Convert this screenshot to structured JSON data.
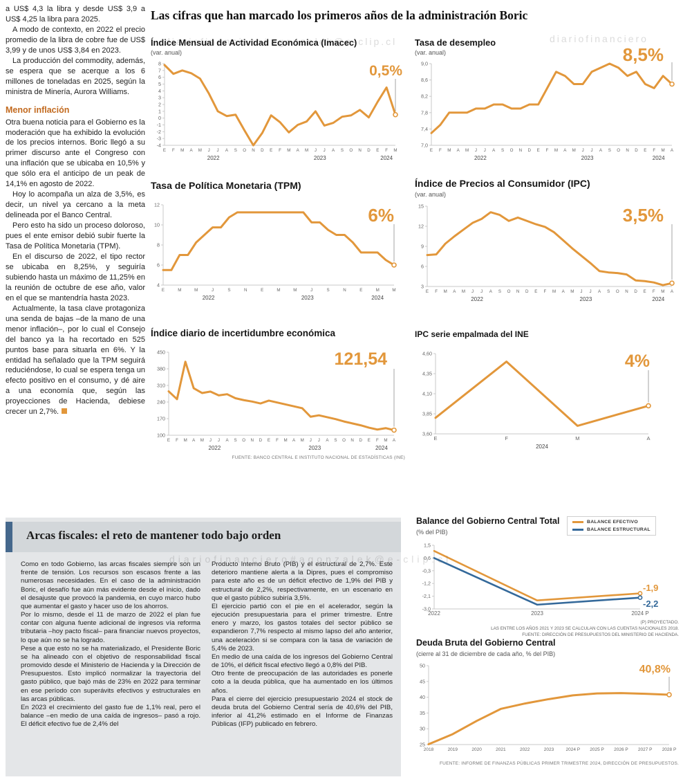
{
  "watermarks": [
    "diariofinanciero#agonzalek@e-clip.cl",
    "diariofinanciero",
    "diariofinanciero#agonzalek@e-clip.cl"
  ],
  "main_title": "Las cifras que han marcado los primeros años de la administración Boric",
  "left_article": {
    "paragraphs_top": [
      "a US$ 4,3 la libra y desde US$ 3,9 a US$ 4,25 la libra para 2025.",
      "A modo de contexto, en 2022 el precio promedio de la libra de cobre fue de US$ 3,99 y de unos US$ 3,84 en 2023.",
      "La producción del commodity, además, se espera que se acerque a los 6 millones de toneladas en 2025, según la ministra de Minería, Aurora Williams."
    ],
    "subheading": "Menor inflación",
    "paragraphs_bottom": [
      "Otra buena noticia para el Gobierno es la moderación que ha exhibido la evolución de los precios internos. Boric llegó a su primer discurso ante el Congreso con una inflación que se ubicaba en 10,5% y que sólo era el anticipo de un peak de 14,1% en agosto de 2022.",
      "Hoy lo acompaña un alza de 3,5%, es decir, un nivel ya cercano a la meta delineada por el Banco Central.",
      "Pero esto ha sido un proceso doloroso, pues el ente emisor debió subir fuerte la Tasa de Política Monetaria (TPM).",
      "En el discurso de 2022, el tipo rector se ubicaba en 8,25%, y seguiría subiendo hasta un máximo de 11,25% en la reunión de octubre de ese año, valor en el que se mantendría hasta 2023.",
      "Actualmente, la tasa clave protagoniza una senda de bajas –de la mano de una menor inflación–, por lo cual el Consejo del banco ya la ha recortado en 525 puntos base para situarla en 6%. Y la entidad ha señalado que la TPM seguirá reduciéndose, lo cual se espera tenga un efecto positivo en el consumo, y dé aire a una economía que, según las proyecciones de Hacienda, debiese crecer un 2,7%."
    ]
  },
  "sources": {
    "top_charts": "FUENTE: BANCO CENTRAL E INSTITUTO NACIONAL DE ESTADÍSTICAS (INE)",
    "debt": "FUENTE: INFORME DE FINANZAS PÚBLICAS PRIMER TRIMESTRE 2024, DIRECCIÓN DE PRESUPUESTOS."
  },
  "balance_notes": [
    "(P) PROYECTADO.",
    "LAS ENTRE LOS AÑOS 2021 Y 2023 SE CALCULAN  CON LAS CUENTAS NACIONALES 2018.",
    "FUENTE: DIRECCIÓN DE PRESUPUESTOS DEL MINISTERIO DE HACIENDA."
  ],
  "fiscal_panel": {
    "title": "Arcas fiscales: el reto de mantener todo bajo orden",
    "col1": [
      "Como en todo Gobierno, las arcas fiscales siempre son un frente de tensión. Los recursos son escasos frente a las numerosas necesidades. En el caso de la administración Boric, el desafío fue aún más evidente desde el inicio, dado el desajuste que provocó la pandemia, en cuyo marco hubo que aumentar el gasto y hacer uso de los ahorros.",
      "Por lo mismo, desde el 11 de marzo de 2022 el plan fue contar con alguna fuente adicional de ingresos vía reforma tributaria –hoy pacto fiscal– para financiar nuevos proyectos, lo que aún no se ha logrado.",
      "Pese a que esto no se ha materializado, el Presidente Boric se ha alineado con el objetivo de responsabilidad fiscal promovido desde el Ministerio de Hacienda y la Dirección de Presupuestos. Esto implicó normalizar la trayectoria del gasto público, que bajó más de 23% en 2022 para terminar en ese período con superávits efectivos y estructurales en las arcas públicas.",
      "En 2023 el crecimiento del gasto fue de 1,1% real, pero el balance –en medio de una caída de ingresos–  pasó a rojo. El déficit efectivo fue de 2,4% del"
    ],
    "col2": [
      "Producto Interno Bruto (PIB) y el estructural de 2,7%. Este deterioro mantiene alerta a la Dipres, pues el compromiso para este año es de un déficit efectivo de 1,9% del PIB y estructural de 2,2%, respectivamente, en un escenario en que el gasto público subiría 3,5%.",
      "El ejercicio partió con el pie en el acelerador, según la ejecución presupuestaria para el primer trimestre. Entre enero y marzo, los gastos totales del sector público se expandieron 7,7% respecto al mismo lapso del año anterior, una aceleración si se compara con la tasa de variación de 5,4% de 2023.",
      "En medio de una caída de los ingresos del Gobierno Central de 10%, el déficit fiscal efectivo llegó a 0,8% del PIB.",
      "Otro frente de preocupación de las autoridades es ponerle coto a la deuda pública, que ha aumentado en los últimos años.",
      "Para el cierre del ejercicio presupuestario 2024 el stock de deuda bruta del Gobierno Central sería de 40,6% del PIB, inferior al 41,2% estimado en el Informe de Finanzas Públicas (IFP) publicado en febrero."
    ]
  },
  "colors": {
    "orange": "#E2973B",
    "blue": "#34699A"
  },
  "chart_data": [
    {
      "type": "line",
      "title": "Índice Mensual de Actividad Económica (Imacec)",
      "subtitle": "(var. anual)",
      "big_label": "0,5%",
      "ymin": -4,
      "ymax": 8,
      "yticks": [
        {
          "v": 8,
          "label": "8"
        },
        {
          "v": 7,
          "label": "7"
        },
        {
          "v": 6,
          "label": "6"
        },
        {
          "v": 5,
          "label": "5"
        },
        {
          "v": 4,
          "label": "4"
        },
        {
          "v": 3,
          "label": "3"
        },
        {
          "v": 2,
          "label": "2"
        },
        {
          "v": 1,
          "label": "1"
        },
        {
          "v": 0,
          "label": "0"
        },
        {
          "v": -1,
          "label": "-1"
        },
        {
          "v": -2,
          "label": "-2"
        },
        {
          "v": -3,
          "label": "-3"
        },
        {
          "v": -4,
          "label": "-4"
        }
      ],
      "xlabels": [
        "E",
        "F",
        "M",
        "A",
        "M",
        "J",
        "J",
        "A",
        "S",
        "O",
        "N",
        "D",
        "E",
        "F",
        "M",
        "A",
        "M",
        "J",
        "J",
        "A",
        "S",
        "O",
        "N",
        "D",
        "E",
        "F",
        "M"
      ],
      "years": [
        {
          "label": "2022",
          "start": 0,
          "end": 11
        },
        {
          "label": "2023",
          "start": 12,
          "end": 23
        },
        {
          "label": "2024",
          "start": 24,
          "end": 26
        }
      ],
      "series": [
        {
          "name": "Imacec",
          "color": "#E2973B",
          "values": [
            7.8,
            6.5,
            7.0,
            6.6,
            5.8,
            3.6,
            1.0,
            0.3,
            0.5,
            -1.8,
            -4.0,
            -2.2,
            0.4,
            -0.6,
            -2.1,
            -1.0,
            -0.5,
            1.0,
            -1.1,
            -0.7,
            0.2,
            0.4,
            1.2,
            0.1,
            2.4,
            4.5,
            0.5
          ]
        }
      ],
      "pointer": true,
      "pointer_top": 28,
      "pad_left": 20,
      "pad_right": 14
    },
    {
      "type": "line",
      "title": "Tasa de desempleo",
      "subtitle": "(var. anual)",
      "big_label": "8,5%",
      "ymin": 7.0,
      "ymax": 9.0,
      "yticks": [
        {
          "v": 9.0,
          "label": "9,0"
        },
        {
          "v": 8.6,
          "label": "8,6"
        },
        {
          "v": 8.2,
          "label": "8,2"
        },
        {
          "v": 7.8,
          "label": "7,8"
        },
        {
          "v": 7.4,
          "label": "7,4"
        },
        {
          "v": 7.0,
          "label": "7,0"
        }
      ],
      "xlabels": [
        "E",
        "F",
        "M",
        "A",
        "M",
        "J",
        "J",
        "A",
        "S",
        "O",
        "N",
        "D",
        "E",
        "F",
        "M",
        "A",
        "M",
        "J",
        "J",
        "A",
        "S",
        "O",
        "N",
        "D",
        "E",
        "F",
        "M",
        "A"
      ],
      "years": [
        {
          "label": "2022",
          "start": 0,
          "end": 11
        },
        {
          "label": "2023",
          "start": 12,
          "end": 23
        },
        {
          "label": "2024",
          "start": 24,
          "end": 27
        }
      ],
      "series": [
        {
          "name": "Tasa de desempleo",
          "color": "#E2973B",
          "values": [
            7.3,
            7.5,
            7.8,
            7.8,
            7.8,
            7.9,
            7.9,
            8.0,
            8.0,
            7.9,
            7.9,
            8.0,
            8.0,
            8.4,
            8.8,
            8.7,
            8.5,
            8.5,
            8.8,
            8.9,
            9.0,
            8.9,
            8.7,
            8.8,
            8.5,
            8.4,
            8.7,
            8.5
          ]
        }
      ],
      "pointer": true,
      "pointer_top": 4,
      "pad_left": 24,
      "pad_right": 12
    },
    {
      "type": "line",
      "title": "Tasa de Política Monetaria (TPM)",
      "big_label": "6%",
      "ymin": 4,
      "ymax": 12,
      "yticks": [
        {
          "v": 12,
          "label": "12"
        },
        {
          "v": 10,
          "label": "10"
        },
        {
          "v": 8,
          "label": "8"
        },
        {
          "v": 6,
          "label": "6"
        },
        {
          "v": 4,
          "label": "4"
        }
      ],
      "xlabels": [
        "E",
        "",
        "M",
        "",
        "M",
        "",
        "J",
        "",
        "S",
        "",
        "N",
        "",
        "E",
        "",
        "M",
        "",
        "M",
        "",
        "J",
        "",
        "S",
        "",
        "N",
        "",
        "E",
        "",
        "M",
        "",
        "M"
      ],
      "years": [
        {
          "label": "2022",
          "start": 0,
          "end": 11
        },
        {
          "label": "2023",
          "start": 12,
          "end": 23
        },
        {
          "label": "2024",
          "start": 24,
          "end": 28
        }
      ],
      "series": [
        {
          "name": "TPM",
          "color": "#E2973B",
          "values": [
            5.5,
            5.5,
            7.0,
            7.0,
            8.25,
            9.0,
            9.75,
            9.75,
            10.75,
            11.25,
            11.25,
            11.25,
            11.25,
            11.25,
            11.25,
            11.25,
            11.25,
            11.25,
            10.25,
            10.25,
            9.5,
            9.0,
            9.0,
            8.25,
            7.25,
            7.25,
            7.25,
            6.5,
            6.0
          ]
        }
      ],
      "pointer": true,
      "pointer_top": 34,
      "pad_left": 18,
      "pad_right": 16
    },
    {
      "type": "line",
      "title": "Índice de Precios al Consumidor (IPC)",
      "subtitle": "(var. anual)",
      "big_label": "3,5%",
      "ymin": 3,
      "ymax": 15,
      "yticks": [
        {
          "v": 15,
          "label": "15"
        },
        {
          "v": 12,
          "label": "12"
        },
        {
          "v": 9,
          "label": "9"
        },
        {
          "v": 6,
          "label": "6"
        },
        {
          "v": 3,
          "label": "3"
        }
      ],
      "xlabels": [
        "E",
        "F",
        "M",
        "A",
        "M",
        "J",
        "J",
        "A",
        "S",
        "O",
        "N",
        "D",
        "E",
        "F",
        "M",
        "A",
        "M",
        "J",
        "J",
        "A",
        "S",
        "O",
        "N",
        "D",
        "E",
        "F",
        "M",
        "A"
      ],
      "years": [
        {
          "label": "2022",
          "start": 0,
          "end": 11
        },
        {
          "label": "2023",
          "start": 12,
          "end": 23
        },
        {
          "label": "2024",
          "start": 24,
          "end": 27
        }
      ],
      "series": [
        {
          "name": "IPC",
          "color": "#E2973B",
          "values": [
            7.7,
            7.8,
            9.4,
            10.5,
            11.5,
            12.5,
            13.1,
            14.1,
            13.7,
            12.8,
            13.3,
            12.8,
            12.3,
            11.9,
            11.1,
            9.9,
            8.7,
            7.6,
            6.5,
            5.3,
            5.1,
            5.0,
            4.8,
            3.9,
            3.8,
            3.6,
            3.2,
            3.5
          ]
        }
      ],
      "pointer": true,
      "pointer_top": 32,
      "pad_left": 18,
      "pad_right": 12
    },
    {
      "type": "line",
      "title": "Índice diario de incertidumbre económica",
      "big_label": "121,54",
      "ymin": 100,
      "ymax": 450,
      "yticks": [
        {
          "v": 450,
          "label": "450"
        },
        {
          "v": 380,
          "label": "380"
        },
        {
          "v": 310,
          "label": "310"
        },
        {
          "v": 240,
          "label": "240"
        },
        {
          "v": 170,
          "label": "170"
        },
        {
          "v": 100,
          "label": "100"
        }
      ],
      "xlabels": [
        "E",
        "F",
        "M",
        "A",
        "M",
        "J",
        "J",
        "A",
        "S",
        "O",
        "N",
        "D",
        "E",
        "F",
        "M",
        "A",
        "M",
        "J",
        "J",
        "A",
        "S",
        "O",
        "N",
        "D",
        "E",
        "F",
        "M",
        "A"
      ],
      "years": [
        {
          "label": "2022",
          "start": 0,
          "end": 11
        },
        {
          "label": "2023",
          "start": 12,
          "end": 23
        },
        {
          "label": "2024",
          "start": 24,
          "end": 27
        }
      ],
      "series": [
        {
          "name": "Incertidumbre económica",
          "color": "#E2973B",
          "values": [
            285,
            252,
            410,
            298,
            278,
            284,
            268,
            273,
            256,
            248,
            242,
            234,
            246,
            238,
            230,
            222,
            214,
            178,
            184,
            176,
            168,
            158,
            150,
            142,
            132,
            124,
            130,
            121.54
          ]
        }
      ],
      "pointer": true,
      "pointer_top": 30,
      "pad_left": 26,
      "pad_right": 16
    },
    {
      "type": "line",
      "title": "IPC serie empalmada del INE",
      "big_label": "4%",
      "ymin": 3.6,
      "ymax": 4.6,
      "yticks": [
        {
          "v": 4.6,
          "label": "4,60"
        },
        {
          "v": 4.35,
          "label": "4,35"
        },
        {
          "v": 4.1,
          "label": "4,10"
        },
        {
          "v": 3.85,
          "label": "3,85"
        },
        {
          "v": 3.6,
          "label": "3,60"
        }
      ],
      "xlabels": [
        "E",
        "F",
        "M",
        "A"
      ],
      "years": [
        {
          "label": "2024",
          "start": 0,
          "end": 3
        }
      ],
      "series": [
        {
          "name": "IPC serie empalmada",
          "color": "#E2973B",
          "values": [
            3.8,
            4.5,
            3.7,
            3.95
          ]
        }
      ],
      "pointer": true,
      "pointer_top": 30,
      "pad_left": 30,
      "pad_right": 46,
      "xlabel_size": 7.5
    },
    {
      "type": "line",
      "title": "Balance del Gobierno Central Total",
      "subtitle": "(% del PIB)",
      "ymin": -3.0,
      "ymax": 1.5,
      "yticks": [
        {
          "v": 1.5,
          "label": "1,5"
        },
        {
          "v": 0.6,
          "label": "0,6"
        },
        {
          "v": -0.3,
          "label": "-0,3"
        },
        {
          "v": -1.2,
          "label": "-1,2"
        },
        {
          "v": -2.1,
          "label": "-2,1"
        },
        {
          "v": -3.0,
          "label": "-3,0"
        }
      ],
      "xlabels": [
        "2022",
        "2023",
        "2024 P"
      ],
      "series": [
        {
          "name": "BALANCE EFECTIVO",
          "color": "#E2973B",
          "values": [
            1.1,
            -2.4,
            -1.9
          ],
          "width": 2.6,
          "marker_r": 2.6,
          "end_label": "-1,9"
        },
        {
          "name": "BALANCE ESTRUCTURAL",
          "color": "#34699A",
          "values": [
            0.6,
            -2.7,
            -2.2
          ],
          "width": 2.6,
          "marker_r": 2.6,
          "end_label": "-2,2"
        }
      ],
      "pointer": false,
      "pad_left": 26,
      "pad_right": 44,
      "xlabel_size": 8,
      "legend_position": "top-right"
    },
    {
      "type": "line",
      "title": "Deuda Bruta del Gobierno Central",
      "subtitle": "(cierre al 31 de diciembre de cada año, % del PIB)",
      "big_label": "40,8%",
      "ymin": 25,
      "ymax": 50,
      "yticks": [
        {
          "v": 50,
          "label": "50"
        },
        {
          "v": 45,
          "label": "45"
        },
        {
          "v": 40,
          "label": "40"
        },
        {
          "v": 35,
          "label": "35"
        },
        {
          "v": 30,
          "label": "30"
        },
        {
          "v": 25,
          "label": "25"
        }
      ],
      "xlabels": [
        "2018",
        "2019",
        "2020",
        "2021",
        "2022",
        "2023",
        "2024 P",
        "2025 P",
        "2026 P",
        "2027 P",
        "2028 P"
      ],
      "series": [
        {
          "name": "Deuda bruta",
          "color": "#E2973B",
          "values": [
            25.1,
            28.3,
            32.5,
            36.3,
            38.0,
            39.4,
            40.6,
            41.2,
            41.3,
            41.1,
            40.8
          ]
        }
      ],
      "pointer": true,
      "pointer_top": 22,
      "pad_left": 18,
      "pad_right": 14,
      "xlabel_size": 6.5
    }
  ]
}
